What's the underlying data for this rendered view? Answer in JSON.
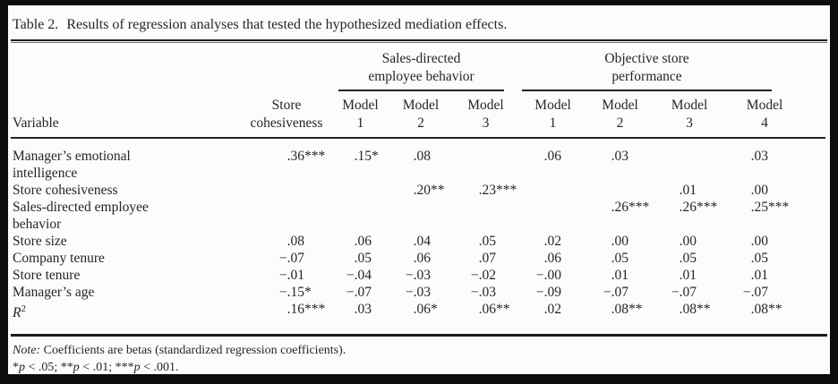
{
  "title": {
    "label": "Table 2.",
    "text": "Results of regression analyses that tested the hypothesized mediation effects."
  },
  "table": {
    "variable_header": "Variable",
    "groups": [
      {
        "label_lines": [
          "Sales-directed",
          "employee behavior"
        ],
        "span": 3
      },
      {
        "label_lines": [
          "Objective store",
          "performance"
        ],
        "span": 4
      }
    ],
    "columns": [
      {
        "lines": [
          "Store",
          "cohesiveness"
        ]
      },
      {
        "lines": [
          "Model",
          "1"
        ]
      },
      {
        "lines": [
          "Model",
          "2"
        ]
      },
      {
        "lines": [
          "Model",
          "3"
        ]
      },
      {
        "lines": [
          "Model",
          "1"
        ]
      },
      {
        "lines": [
          "Model",
          "2"
        ]
      },
      {
        "lines": [
          "Model",
          "3"
        ]
      },
      {
        "lines": [
          "Model",
          "4"
        ]
      }
    ],
    "rows": [
      {
        "label_lines": [
          "Manager’s emotional",
          "intelligence"
        ],
        "values": [
          ".36***",
          ".15*",
          ".08",
          "",
          ".06",
          ".03",
          "",
          ".03"
        ]
      },
      {
        "label_lines": [
          "Store cohesiveness"
        ],
        "values": [
          "",
          "",
          ".20**",
          ".23***",
          "",
          "",
          ".01",
          ".00"
        ]
      },
      {
        "label_lines": [
          "Sales-directed employee",
          "behavior"
        ],
        "values": [
          "",
          "",
          "",
          "",
          "",
          ".26***",
          ".26***",
          ".25***"
        ]
      },
      {
        "label_lines": [
          "Store size"
        ],
        "values": [
          ".08",
          ".06",
          ".04",
          ".05",
          ".02",
          ".00",
          ".00",
          ".00"
        ]
      },
      {
        "label_lines": [
          "Company tenure"
        ],
        "values": [
          "−.07",
          ".05",
          ".06",
          ".07",
          ".06",
          ".05",
          ".05",
          ".05"
        ]
      },
      {
        "label_lines": [
          "Store tenure"
        ],
        "values": [
          "−.01",
          "−.04",
          "−.03",
          "−.02",
          "−.00",
          ".01",
          ".01",
          ".01"
        ]
      },
      {
        "label_lines": [
          "Manager’s age"
        ],
        "values": [
          "−.15*",
          "−.07",
          "−.03",
          "−.03",
          "−.09",
          "−.07",
          "−.07",
          "−.07"
        ]
      },
      {
        "label_parts": {
          "base": "R",
          "sup": "2"
        },
        "values": [
          ".16***",
          ".03",
          ".06*",
          ".06**",
          ".02",
          ".08**",
          ".08**",
          ".08**"
        ]
      }
    ]
  },
  "note": {
    "prefix": "Note:",
    "text": " Coefficients are betas (standardized regression coefficients).",
    "p_label": "p",
    "sig_items": [
      {
        "stars": "*",
        "threshold": ".05"
      },
      {
        "stars": "**",
        "threshold": ".01"
      },
      {
        "stars": "***",
        "threshold": ".001"
      }
    ]
  },
  "colors": {
    "frame": "#0d0d0d",
    "page_bg": "#fcfcfc",
    "text": "#262626",
    "rule": "#1c1c1c"
  }
}
